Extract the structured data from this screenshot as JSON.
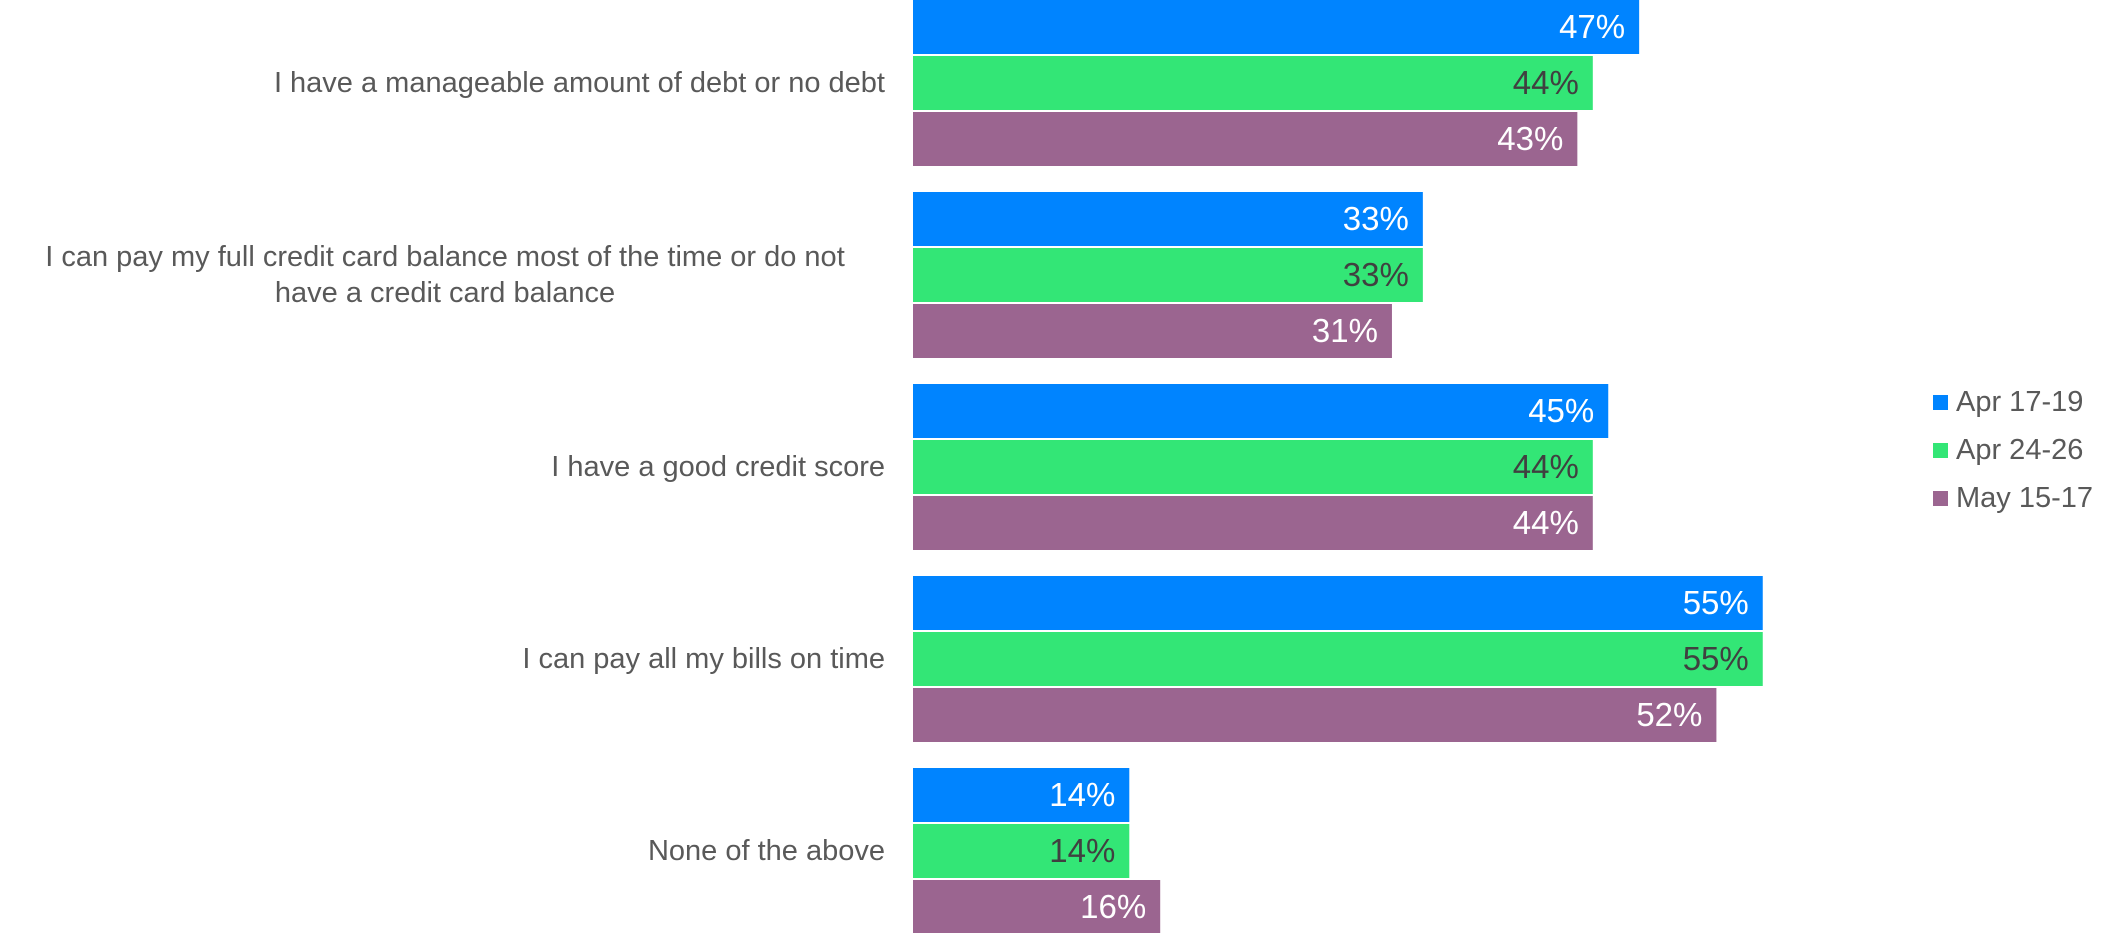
{
  "chart_data": {
    "type": "bar",
    "orientation": "horizontal",
    "categories": [
      "I have a manageable amount of debt or no debt",
      "I can pay my full credit card balance most of the time or do not have a credit card balance",
      "I have a good credit score",
      "I can pay all my bills on time",
      "None of the above"
    ],
    "category_lines": [
      [
        "I have a manageable amount of debt or no debt"
      ],
      [
        "I can pay my full credit card balance most of the time or do not",
        "have a credit card balance"
      ],
      [
        "I have a good credit score"
      ],
      [
        "I can pay all my bills on time"
      ],
      [
        "None of the above"
      ]
    ],
    "series": [
      {
        "name": "Apr 17-19",
        "color": "#0084FF",
        "label_color": "#FFFFFF",
        "values": [
          47,
          33,
          45,
          55,
          14
        ]
      },
      {
        "name": "Apr 24-26",
        "color": "#33E676",
        "label_color": "#404040",
        "values": [
          44,
          33,
          44,
          55,
          14
        ]
      },
      {
        "name": "May 15-17",
        "color": "#9B6590",
        "label_color": "#FFFFFF",
        "values": [
          43,
          31,
          44,
          52,
          16
        ]
      }
    ],
    "value_suffix": "%",
    "xlim": [
      0,
      100
    ],
    "grid": false,
    "legend_position": "right",
    "title": "",
    "xlabel": "",
    "ylabel": ""
  }
}
